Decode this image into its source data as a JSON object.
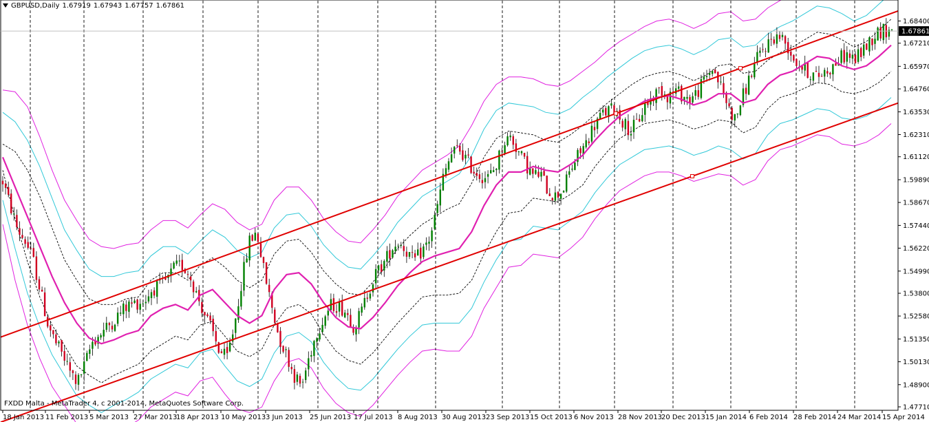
{
  "header": {
    "symbol": "GBPUSD,Daily",
    "open": "1.67919",
    "high": "1.67943",
    "low": "1.67757",
    "close": "1.67861"
  },
  "copyright": "FXDD Malta - MetaTrader 4, c 2001-2014, MetaQuotes Software Corp.",
  "chart_data": {
    "type": "candlestick",
    "symbol": "GBPUSD",
    "timeframe": "Daily",
    "current_price": "1.67861",
    "ylim": [
      1.4771,
      1.6896
    ],
    "y_ticks": [
      "1.68400",
      "1.67210",
      "1.65970",
      "1.64760",
      "1.63530",
      "1.62310",
      "1.61120",
      "1.59890",
      "1.58670",
      "1.57440",
      "1.56220",
      "1.54990",
      "1.53800",
      "1.52580",
      "1.51350",
      "1.50130",
      "1.48900",
      "1.47710"
    ],
    "x_ticks": [
      "18 Jan 2013",
      "11 Feb 2013",
      "5 Mar 2013",
      "27 Mar 2013",
      "18 Apr 2013",
      "10 May 2013",
      "3 Jun 2013",
      "25 Jun 2013",
      "17 Jul 2013",
      "8 Aug 2013",
      "30 Aug 2013",
      "23 Sep 2013",
      "15 Oct 2013",
      "6 Nov 2013",
      "28 Nov 2013",
      "20 Dec 2013",
      "15 Jan 2014",
      "6 Feb 2014",
      "28 Feb 2014",
      "24 Mar 2014",
      "15 Apr 2014"
    ],
    "close_path": [
      1.598,
      1.585,
      1.572,
      1.566,
      1.557,
      1.54,
      1.522,
      1.512,
      1.505,
      1.496,
      1.49,
      1.5,
      1.512,
      1.516,
      1.52,
      1.524,
      1.529,
      1.532,
      1.533,
      1.534,
      1.54,
      1.542,
      1.545,
      1.552,
      1.553,
      1.548,
      1.537,
      1.527,
      1.518,
      1.507,
      1.503,
      1.521,
      1.545,
      1.566,
      1.571,
      1.549,
      1.531,
      1.514,
      1.505,
      1.494,
      1.488,
      1.504,
      1.517,
      1.525,
      1.532,
      1.531,
      1.528,
      1.52,
      1.528,
      1.54,
      1.549,
      1.554,
      1.562,
      1.566,
      1.561,
      1.555,
      1.56,
      1.566,
      1.581,
      1.601,
      1.612,
      1.616,
      1.61,
      1.604,
      1.601,
      1.6,
      1.606,
      1.619,
      1.622,
      1.614,
      1.607,
      1.601,
      1.602,
      1.593,
      1.59,
      1.594,
      1.604,
      1.612,
      1.618,
      1.627,
      1.633,
      1.636,
      1.637,
      1.63,
      1.625,
      1.63,
      1.639,
      1.643,
      1.648,
      1.644,
      1.647,
      1.644,
      1.642,
      1.646,
      1.653,
      1.659,
      1.65,
      1.639,
      1.631,
      1.643,
      1.654,
      1.664,
      1.67,
      1.675,
      1.676,
      1.671,
      1.663,
      1.659,
      1.656,
      1.654,
      1.657,
      1.659,
      1.664,
      1.666,
      1.663,
      1.668,
      1.673,
      1.678,
      1.679,
      1.679
    ],
    "bands": {
      "ma": [
        1.611,
        1.595,
        1.579,
        1.563,
        1.547,
        1.533,
        1.522,
        1.514,
        1.511,
        1.513,
        1.516,
        1.518,
        1.526,
        1.53,
        1.532,
        1.529,
        1.537,
        1.54,
        1.533,
        1.526,
        1.522,
        1.526,
        1.54,
        1.548,
        1.549,
        1.543,
        1.533,
        1.525,
        1.52,
        1.519,
        1.525,
        1.533,
        1.542,
        1.549,
        1.555,
        1.558,
        1.56,
        1.562,
        1.571,
        1.585,
        1.596,
        1.603,
        1.603,
        1.606,
        1.604,
        1.603,
        1.607,
        1.612,
        1.62,
        1.627,
        1.633,
        1.637,
        1.641,
        1.643,
        1.644,
        1.642,
        1.639,
        1.641,
        1.645,
        1.645,
        1.64,
        1.642,
        1.65,
        1.655,
        1.657,
        1.661,
        1.665,
        1.664,
        1.66,
        1.658,
        1.66,
        1.665,
        1.671
      ],
      "inner_upper": [
        1.618,
        1.614,
        1.604,
        1.59,
        1.573,
        1.556,
        1.545,
        1.535,
        1.532,
        1.532,
        1.535,
        1.536,
        1.545,
        1.549,
        1.549,
        1.545,
        1.553,
        1.557,
        1.552,
        1.545,
        1.541,
        1.545,
        1.559,
        1.566,
        1.567,
        1.56,
        1.55,
        1.543,
        1.538,
        1.537,
        1.544,
        1.552,
        1.562,
        1.569,
        1.575,
        1.579,
        1.583,
        1.586,
        1.597,
        1.611,
        1.621,
        1.625,
        1.624,
        1.623,
        1.62,
        1.619,
        1.623,
        1.628,
        1.634,
        1.64,
        1.645,
        1.65,
        1.654,
        1.656,
        1.657,
        1.655,
        1.652,
        1.655,
        1.66,
        1.661,
        1.656,
        1.657,
        1.663,
        1.667,
        1.67,
        1.674,
        1.678,
        1.677,
        1.674,
        1.67,
        1.673,
        1.679,
        1.685
      ],
      "inner_lower": [
        1.604,
        1.578,
        1.555,
        1.536,
        1.521,
        1.51,
        1.499,
        1.494,
        1.49,
        1.494,
        1.497,
        1.5,
        1.507,
        1.511,
        1.515,
        1.513,
        1.521,
        1.523,
        1.515,
        1.507,
        1.504,
        1.508,
        1.521,
        1.53,
        1.532,
        1.527,
        1.516,
        1.507,
        1.502,
        1.5,
        1.506,
        1.514,
        1.522,
        1.529,
        1.536,
        1.537,
        1.537,
        1.538,
        1.545,
        1.559,
        1.571,
        1.581,
        1.582,
        1.589,
        1.588,
        1.587,
        1.591,
        1.596,
        1.606,
        1.614,
        1.621,
        1.625,
        1.629,
        1.63,
        1.631,
        1.629,
        1.626,
        1.628,
        1.631,
        1.63,
        1.624,
        1.627,
        1.637,
        1.643,
        1.645,
        1.648,
        1.651,
        1.65,
        1.646,
        1.645,
        1.647,
        1.651,
        1.657
      ],
      "mid_upper": [
        1.635,
        1.63,
        1.62,
        1.606,
        1.589,
        1.572,
        1.561,
        1.551,
        1.547,
        1.547,
        1.549,
        1.55,
        1.558,
        1.563,
        1.563,
        1.559,
        1.566,
        1.572,
        1.568,
        1.561,
        1.557,
        1.56,
        1.573,
        1.58,
        1.581,
        1.574,
        1.564,
        1.557,
        1.552,
        1.551,
        1.558,
        1.566,
        1.576,
        1.583,
        1.59,
        1.594,
        1.598,
        1.602,
        1.612,
        1.626,
        1.636,
        1.64,
        1.639,
        1.638,
        1.635,
        1.634,
        1.637,
        1.643,
        1.648,
        1.654,
        1.659,
        1.664,
        1.668,
        1.67,
        1.671,
        1.669,
        1.666,
        1.669,
        1.674,
        1.675,
        1.67,
        1.671,
        1.677,
        1.681,
        1.684,
        1.688,
        1.692,
        1.691,
        1.688,
        1.684,
        1.687,
        1.693,
        1.699
      ],
      "mid_lower": [
        1.588,
        1.562,
        1.538,
        1.52,
        1.505,
        1.494,
        1.483,
        1.478,
        1.474,
        1.478,
        1.481,
        1.485,
        1.492,
        1.496,
        1.5,
        1.498,
        1.506,
        1.508,
        1.499,
        1.491,
        1.488,
        1.492,
        1.506,
        1.515,
        1.517,
        1.512,
        1.501,
        1.493,
        1.487,
        1.486,
        1.492,
        1.5,
        1.508,
        1.515,
        1.521,
        1.522,
        1.522,
        1.522,
        1.53,
        1.544,
        1.556,
        1.566,
        1.567,
        1.574,
        1.573,
        1.572,
        1.577,
        1.582,
        1.592,
        1.6,
        1.607,
        1.611,
        1.615,
        1.616,
        1.617,
        1.615,
        1.612,
        1.614,
        1.617,
        1.615,
        1.61,
        1.613,
        1.623,
        1.629,
        1.631,
        1.634,
        1.637,
        1.636,
        1.632,
        1.631,
        1.633,
        1.637,
        1.643
      ],
      "outer_upper": [
        1.647,
        1.646,
        1.638,
        1.622,
        1.604,
        1.588,
        1.577,
        1.567,
        1.563,
        1.562,
        1.564,
        1.565,
        1.572,
        1.577,
        1.577,
        1.573,
        1.58,
        1.586,
        1.583,
        1.576,
        1.572,
        1.575,
        1.588,
        1.595,
        1.595,
        1.588,
        1.578,
        1.571,
        1.566,
        1.565,
        1.572,
        1.58,
        1.59,
        1.597,
        1.604,
        1.608,
        1.612,
        1.617,
        1.628,
        1.641,
        1.65,
        1.654,
        1.654,
        1.653,
        1.65,
        1.649,
        1.652,
        1.657,
        1.662,
        1.668,
        1.673,
        1.677,
        1.681,
        1.684,
        1.685,
        1.683,
        1.68,
        1.683,
        1.688,
        1.689,
        1.684,
        1.685,
        1.691,
        1.695,
        1.698,
        1.702,
        1.706,
        1.705,
        1.701,
        1.698,
        1.701,
        1.707,
        1.713
      ],
      "outer_lower": [
        1.575,
        1.545,
        1.521,
        1.503,
        1.488,
        1.478,
        1.468,
        1.462,
        1.458,
        1.462,
        1.466,
        1.47,
        1.477,
        1.481,
        1.485,
        1.483,
        1.491,
        1.493,
        1.484,
        1.476,
        1.474,
        1.477,
        1.491,
        1.501,
        1.503,
        1.498,
        1.487,
        1.479,
        1.474,
        1.472,
        1.478,
        1.486,
        1.494,
        1.501,
        1.507,
        1.508,
        1.507,
        1.507,
        1.515,
        1.53,
        1.541,
        1.552,
        1.553,
        1.559,
        1.558,
        1.557,
        1.562,
        1.568,
        1.578,
        1.586,
        1.593,
        1.597,
        1.601,
        1.603,
        1.603,
        1.601,
        1.598,
        1.6,
        1.602,
        1.601,
        1.596,
        1.599,
        1.609,
        1.615,
        1.617,
        1.62,
        1.623,
        1.622,
        1.618,
        1.617,
        1.619,
        1.623,
        1.629
      ]
    },
    "trend_channel": {
      "upper": [
        [
          0,
          1.5145
        ],
        [
          1,
          1.6894
        ]
      ],
      "lower": [
        [
          0,
          1.4689
        ],
        [
          1,
          1.64
        ]
      ]
    },
    "colors": {
      "background": "#ffffff",
      "bull_candle": "#008000",
      "bear_candle": "#d00020",
      "ma": "#e020b0",
      "outer_band": "#e020e0",
      "middle_band": "#30c8d8",
      "inner_band": "#000000",
      "trend_line": "#e00000",
      "grid_dashed": "#000000",
      "price_label_bg": "#000000",
      "price_label_fg": "#ffffff"
    }
  }
}
